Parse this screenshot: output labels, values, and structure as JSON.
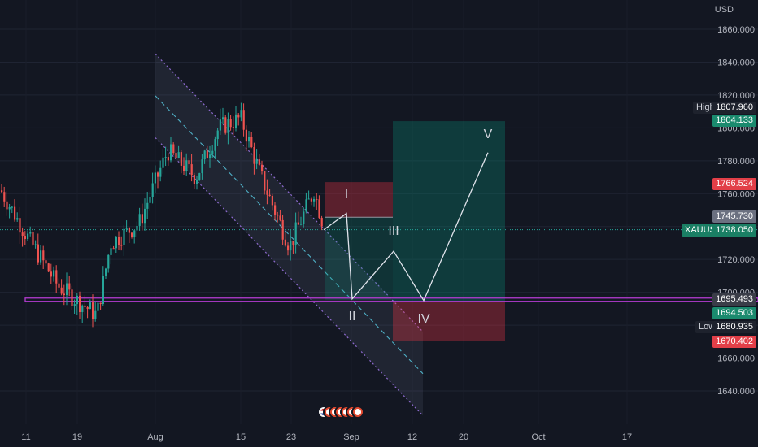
{
  "chart_data": {
    "type": "candlestick",
    "symbol": "XAUUSD",
    "currency": "USD",
    "ylim": [
      1620,
      1870
    ],
    "y_ticks": [
      "1860.000",
      "1840.000",
      "1820.000",
      "1800.000",
      "1780.000",
      "1760.000",
      "1740.000",
      "1720.000",
      "1700.000",
      "1680.000",
      "1660.000",
      "1640.000"
    ],
    "x_ticks": [
      "11",
      "19",
      "Aug",
      "15",
      "23",
      "Sep",
      "12",
      "20",
      "Oct",
      "17"
    ],
    "last_price": "1738.050",
    "price_labels": {
      "high_tag": "High",
      "high_value": "1807.960",
      "target": "1804.133",
      "stop_short": "1766.524",
      "marker": "1745.730",
      "current": "1738.050",
      "support": "1695.493",
      "entry": "1694.503",
      "low_tag": "Low",
      "low_value": "1680.935",
      "stop_long": "1670.402"
    },
    "elliott_waves": [
      {
        "label": "I",
        "price": 1748
      },
      {
        "label": "II",
        "price": 1696
      },
      {
        "label": "III",
        "price": 1725
      },
      {
        "label": "IV",
        "price": 1695
      },
      {
        "label": "V",
        "price": 1785
      }
    ],
    "support_line": 1695.493,
    "colors": {
      "up": "#26a69a",
      "down": "#ef5350",
      "background": "#131722",
      "support": "#b33bd0",
      "channel": "#7e57c2",
      "wave": "#e0e3eb"
    }
  }
}
